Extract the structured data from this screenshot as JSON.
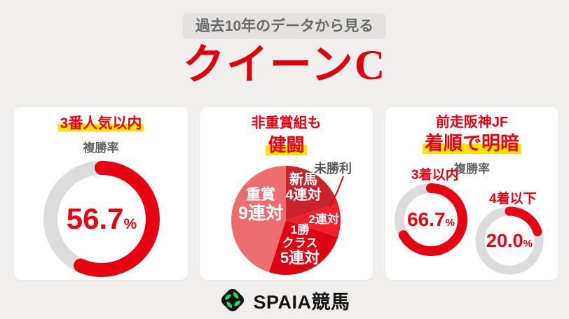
{
  "theme": {
    "red": "#e60012",
    "yellow": "#ffe400",
    "track": "#dcdcdc",
    "page": "#f0efee",
    "banner-bg": "#e3e2e1",
    "banner-fg": "#6a6a6a",
    "title-red": "#dc000c",
    "gray-text": "#646464",
    "dark-label": "#595959",
    "logo-bg": "#141414",
    "logo-green": "#2dd96e"
  },
  "header": {
    "banner_text": "過去10年のデータから見る",
    "title": "クイーンC"
  },
  "cards": {
    "popularity": {
      "title": "3番人気以内",
      "metric_label": "複勝率",
      "display_value": "56.7",
      "unit": "%"
    },
    "class_pie": {
      "title_line1": "非重賞組も",
      "title_line2": "健闘",
      "callout_label": "未勝利"
    },
    "hanshin_jf": {
      "title_line1": "前走阪神JF",
      "title_line2": "着順で明暗",
      "metric_label": "複勝率",
      "donut_left": {
        "label": "3着以内",
        "display_value": "66.7",
        "unit": "%"
      },
      "donut_right": {
        "label": "4着以下",
        "display_value": "20.0",
        "unit": "%"
      }
    }
  },
  "footer": {
    "logo_text": "SPAIA競馬"
  },
  "chart_data": [
    {
      "type": "donut",
      "card": "3番人気以内",
      "metric": "複勝率",
      "percent": 56.7,
      "color": "#e60012",
      "track_color": "#dcdcdc",
      "start": "top",
      "direction": "clockwise"
    },
    {
      "type": "pie",
      "card": "非重賞組も健闘",
      "unit": "連対",
      "total": 20,
      "start": "top",
      "direction": "clockwise",
      "slices": [
        {
          "label": "新馬",
          "value": 4,
          "display_value": "4連対",
          "color": "#c9242b",
          "label_lines": [
            "新馬",
            "4連対"
          ]
        },
        {
          "label": "未勝利",
          "value": 2,
          "display_value": "2連対",
          "color": "#f2202b",
          "label_lines": [
            "2連対"
          ]
        },
        {
          "label": "1勝クラス",
          "value": 5,
          "display_value": "5連対",
          "color": "#dd0013",
          "label_lines": [
            "1勝",
            "クラス",
            "5連対"
          ]
        },
        {
          "label": "重賞",
          "value": 9,
          "display_value": "9連対",
          "color": "#ed6d6f",
          "label_lines": [
            "重賞",
            "9連対"
          ]
        }
      ]
    },
    {
      "type": "donut",
      "card": "前走阪神JF",
      "series": "3着以内",
      "metric": "複勝率",
      "percent": 66.7,
      "color": "#e60012",
      "track_color": "#dcdcdc",
      "start": "top",
      "direction": "clockwise"
    },
    {
      "type": "donut",
      "card": "前走阪神JF",
      "series": "4着以下",
      "metric": "複勝率",
      "percent": 20.0,
      "color": "#e60012",
      "track_color": "#dcdcdc",
      "start": "top",
      "direction": "clockwise"
    }
  ]
}
